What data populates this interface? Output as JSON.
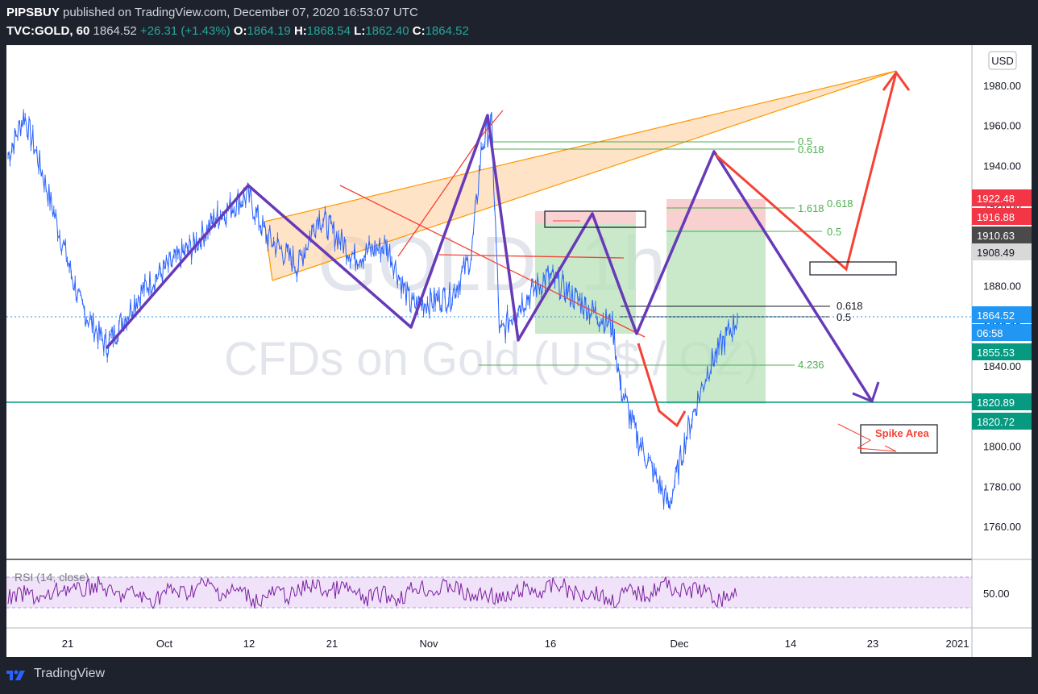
{
  "header": {
    "publisher": "PIPSBUY",
    "published_text": "published on TradingView.com, December 07, 2020 16:53:07 UTC",
    "symbol": "TVC:GOLD, 60",
    "last": "1864.52",
    "change": "+26.31 (+1.43%)",
    "o_label": "O:",
    "o": "1864.19",
    "h_label": "H:",
    "h": "1868.54",
    "l_label": "L:",
    "l": "1862.40",
    "c_label": "C:",
    "c": "1864.52"
  },
  "watermark": {
    "symbol": "GOLD, 1h",
    "description": "CFDs on Gold (US$ / OZ)"
  },
  "currency": "USD",
  "footer": {
    "brand": "TradingView"
  },
  "colors": {
    "background": "#1e222d",
    "chart_bg": "#ffffff",
    "candle": "#2962ff",
    "pattern": "#673ab7",
    "fib": "#4caf50",
    "arrow": "#f44336",
    "wedge": "#ff9800"
  },
  "annotations": {
    "spike_area": "Spike Area",
    "fib_top_05": "0.5",
    "fib_top_0618": "0.618",
    "fib_1618": "1.618",
    "fib_mid_0618": "0.618",
    "fib_mid_05": "0.5",
    "fib_low_0618": "0.618",
    "fib_low_05": "0.5",
    "fib_4236": "4.236"
  },
  "rsi": {
    "label": "RSI (14, close)",
    "level": "50.00"
  },
  "chart_data": {
    "type": "line",
    "title": "",
    "ylim": [
      1750,
      1995
    ],
    "xlabels": [
      "21",
      "Oct",
      "12",
      "21",
      "Nov",
      "16",
      "Dec",
      "14",
      "23",
      "2021"
    ],
    "yticks": [
      "1980.00",
      "1960.00",
      "1940.00",
      "1920.00",
      "1900.00",
      "1880.00",
      "1860.00",
      "1840.00",
      "1820.00",
      "1800.00",
      "1780.00",
      "1760.00"
    ],
    "price_labels": [
      {
        "value": "1922.48",
        "color": "#f23645",
        "text": "#ffffff"
      },
      {
        "value": "1916.88",
        "color": "#f23645",
        "text": "#ffffff"
      },
      {
        "value": "1910.63",
        "color": "#4a4a4a",
        "text": "#ffffff"
      },
      {
        "value": "1908.49",
        "color": "#d9d9d9",
        "text": "#131722"
      },
      {
        "value": "1864.52",
        "color": "#2196f3",
        "text": "#ffffff"
      },
      {
        "value": "06:58",
        "color": "#2196f3",
        "text": "#ffffff"
      },
      {
        "value": "1855.53",
        "color": "#089981",
        "text": "#ffffff"
      },
      {
        "value": "1820.89",
        "color": "#089981",
        "text": "#ffffff"
      },
      {
        "value": "1820.72",
        "color": "#089981",
        "text": "#ffffff"
      }
    ],
    "series": [
      {
        "x": [
          "Sep 14",
          "Sep 17",
          "Sep 21",
          "Sep 23",
          "Sep 25",
          "Oct 1",
          "Oct 6",
          "Oct 9",
          "Oct 12",
          "Oct 15",
          "Oct 19",
          "Oct 21",
          "Oct 23",
          "Oct 26",
          "Oct 28",
          "Nov 2",
          "Nov 4",
          "Nov 6",
          "Nov 9",
          "Nov 10",
          "Nov 12",
          "Nov 16",
          "Nov 18",
          "Nov 23",
          "Nov 25",
          "Nov 27",
          "Nov 30",
          "Dec 1",
          "Dec 3",
          "Dec 7"
        ],
        "values": [
          1945,
          1965,
          1940,
          1870,
          1850,
          1880,
          1900,
          1915,
          1925,
          1905,
          1890,
          1915,
          1895,
          1900,
          1870,
          1875,
          1895,
          1950,
          1960,
          1855,
          1870,
          1885,
          1875,
          1860,
          1830,
          1805,
          1770,
          1810,
          1840,
          1864
        ]
      }
    ]
  }
}
